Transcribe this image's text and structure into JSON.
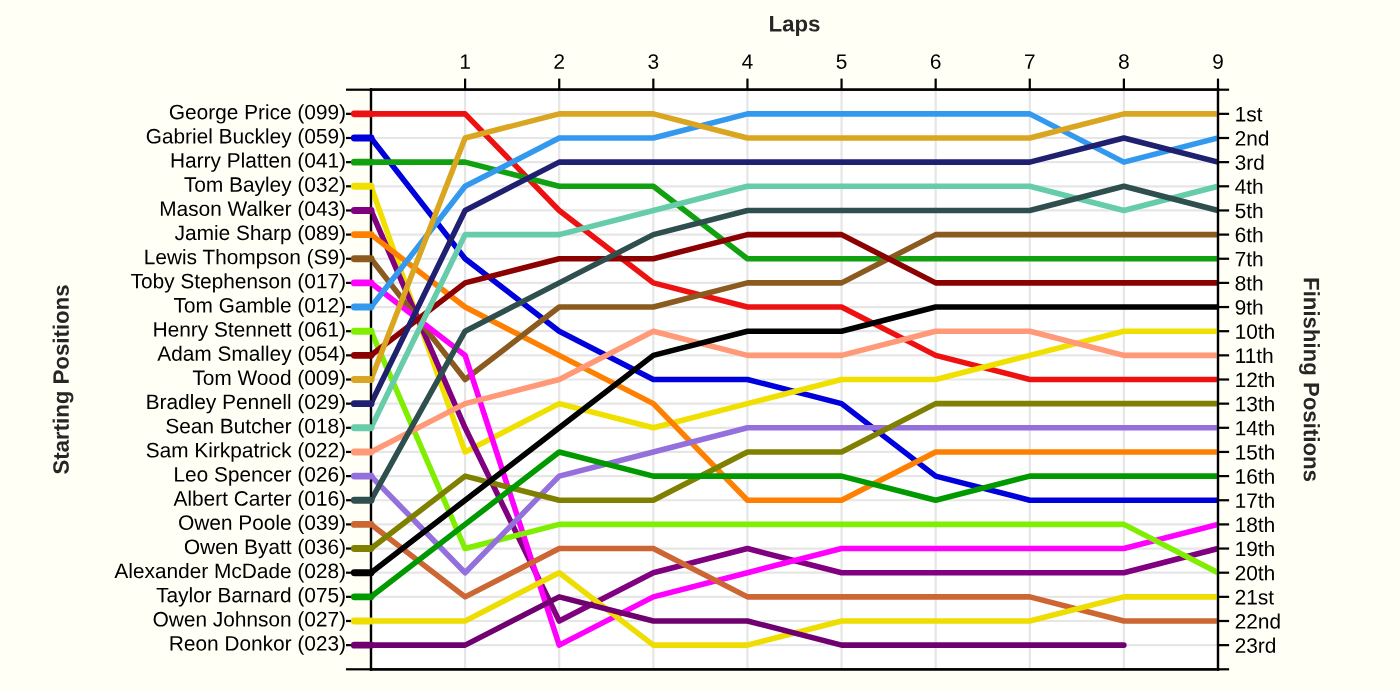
{
  "chart_data": {
    "type": "line",
    "xlabel": "Laps",
    "annotations": [
      "Starting Positions"
    ],
    "y2label": "Finishing Positions",
    "x": [
      0,
      1,
      2,
      3,
      4,
      5,
      6,
      7,
      8,
      9
    ],
    "xlim": [
      0,
      9
    ],
    "xticks": [
      1,
      2,
      3,
      4,
      5,
      6,
      7,
      8,
      9
    ],
    "y2lim": [
      24,
      0
    ],
    "y2ticks": [
      {
        "value": 0,
        "label": null
      },
      {
        "value": 1,
        "label": "1st"
      },
      {
        "value": 2,
        "label": "2nd"
      },
      {
        "value": 3,
        "label": "3rd"
      },
      {
        "value": 4,
        "label": "4th"
      },
      {
        "value": 5,
        "label": "5th"
      },
      {
        "value": 6,
        "label": "6th"
      },
      {
        "value": 7,
        "label": "7th"
      },
      {
        "value": 8,
        "label": "8th"
      },
      {
        "value": 9,
        "label": "9th"
      },
      {
        "value": 10,
        "label": "10th"
      },
      {
        "value": 11,
        "label": "11th"
      },
      {
        "value": 12,
        "label": "12th"
      },
      {
        "value": 13,
        "label": "13th"
      },
      {
        "value": 14,
        "label": "14th"
      },
      {
        "value": 15,
        "label": "15th"
      },
      {
        "value": 16,
        "label": "16th"
      },
      {
        "value": 17,
        "label": "17th"
      },
      {
        "value": 18,
        "label": "18th"
      },
      {
        "value": 19,
        "label": "19th"
      },
      {
        "value": 20,
        "label": "20th"
      },
      {
        "value": 21,
        "label": "21st"
      },
      {
        "value": 22,
        "label": "22nd"
      },
      {
        "value": 23,
        "label": "23rd"
      },
      {
        "value": 24,
        "label": null
      }
    ],
    "grid": true,
    "marker": "none",
    "line_style": "solid",
    "legend": "left",
    "series": [
      {
        "name": "George Price (099)",
        "axis": "y2",
        "color": "#ee1111",
        "values": [
          1,
          1,
          5,
          8,
          9,
          9,
          11,
          12,
          12,
          12
        ]
      },
      {
        "name": "Gabriel Buckley (059)",
        "axis": "y2",
        "color": "#0000dd",
        "values": [
          2,
          7,
          10,
          12,
          12,
          13,
          16,
          17,
          17,
          17
        ]
      },
      {
        "name": "Harry Platten (041)",
        "axis": "y2",
        "color": "#10a010",
        "values": [
          3,
          3,
          4,
          4,
          7,
          7,
          7,
          7,
          7,
          7
        ]
      },
      {
        "name": "Tom Bayley (032)",
        "axis": "y2",
        "color": "#f0e000",
        "values": [
          4,
          15,
          13,
          14,
          13,
          12,
          12,
          11,
          10,
          10
        ]
      },
      {
        "name": "Mason Walker (043)",
        "axis": "y2",
        "color": "#800080",
        "values": [
          5,
          14,
          22,
          20,
          19,
          20,
          20,
          20,
          20,
          19
        ]
      },
      {
        "name": "Jamie Sharp (089)",
        "axis": "y2",
        "color": "#ff8000",
        "values": [
          6,
          9,
          11,
          13,
          17,
          17,
          15,
          15,
          15,
          15
        ]
      },
      {
        "name": "Lewis Thompson (S9)",
        "axis": "y2",
        "color": "#8b5a1e",
        "values": [
          7,
          12,
          9,
          9,
          8,
          8,
          6,
          6,
          6,
          6
        ]
      },
      {
        "name": "Toby Stephenson (017)",
        "axis": "y2",
        "color": "#ff00ff",
        "values": [
          8,
          11,
          23,
          21,
          20,
          19,
          19,
          19,
          19,
          18
        ]
      },
      {
        "name": "Tom Gamble (012)",
        "axis": "y2",
        "color": "#3399ee",
        "values": [
          9,
          4,
          2,
          2,
          1,
          1,
          1,
          1,
          3,
          2
        ]
      },
      {
        "name": "Henry Stennett (061)",
        "axis": "y2",
        "color": "#80ee00",
        "values": [
          10,
          19,
          18,
          18,
          18,
          18,
          18,
          18,
          18,
          20
        ]
      },
      {
        "name": "Adam Smalley (054)",
        "axis": "y2",
        "color": "#8b0000",
        "values": [
          11,
          8,
          7,
          7,
          6,
          6,
          8,
          8,
          8,
          8
        ]
      },
      {
        "name": "Tom Wood (009)",
        "axis": "y2",
        "color": "#daa520",
        "values": [
          12,
          2,
          1,
          1,
          2,
          2,
          2,
          2,
          1,
          1
        ]
      },
      {
        "name": "Bradley Pennell (029)",
        "axis": "y2",
        "color": "#202070",
        "values": [
          13,
          5,
          3,
          3,
          3,
          3,
          3,
          3,
          2,
          3
        ]
      },
      {
        "name": "Sean Butcher (018)",
        "axis": "y2",
        "color": "#66ccaa",
        "values": [
          14,
          6,
          6,
          5,
          4,
          4,
          4,
          4,
          5,
          4
        ]
      },
      {
        "name": "Sam Kirkpatrick (022)",
        "axis": "y2",
        "color": "#ff9977",
        "values": [
          15,
          13,
          12,
          10,
          11,
          11,
          10,
          10,
          11,
          11
        ]
      },
      {
        "name": "Leo Spencer (026)",
        "axis": "y2",
        "color": "#9370db",
        "values": [
          16,
          20,
          16,
          15,
          14,
          14,
          14,
          14,
          14,
          14
        ]
      },
      {
        "name": "Albert Carter (016)",
        "axis": "y2",
        "color": "#2f4f4f",
        "values": [
          17,
          10,
          8,
          6,
          5,
          5,
          5,
          5,
          4,
          5
        ]
      },
      {
        "name": "Owen Poole (039)",
        "axis": "y2",
        "color": "#cc6633",
        "values": [
          18,
          21,
          19,
          19,
          21,
          21,
          21,
          21,
          22,
          22
        ]
      },
      {
        "name": "Owen Byatt (036)",
        "axis": "y2",
        "color": "#808000",
        "values": [
          19,
          16,
          17,
          17,
          15,
          15,
          13,
          13,
          13,
          13
        ]
      },
      {
        "name": "Alexander McDade (028)",
        "axis": "y2",
        "color": "#000000",
        "values": [
          20,
          17,
          14,
          11,
          10,
          10,
          9,
          9,
          9,
          9
        ]
      },
      {
        "name": "Taylor Barnard (075)",
        "axis": "y2",
        "color": "#009900",
        "values": [
          21,
          18,
          15,
          16,
          16,
          16,
          17,
          16,
          16,
          16
        ]
      },
      {
        "name": "Owen Johnson (027)",
        "axis": "y2",
        "color": "#eedd00",
        "values": [
          22,
          22,
          20,
          23,
          23,
          22,
          22,
          22,
          21,
          21
        ]
      },
      {
        "name": "Reon Donkor (023)",
        "axis": "y2",
        "color": "#700070",
        "values": [
          23,
          23,
          21,
          22,
          22,
          23,
          23,
          23,
          23,
          null
        ]
      }
    ]
  }
}
